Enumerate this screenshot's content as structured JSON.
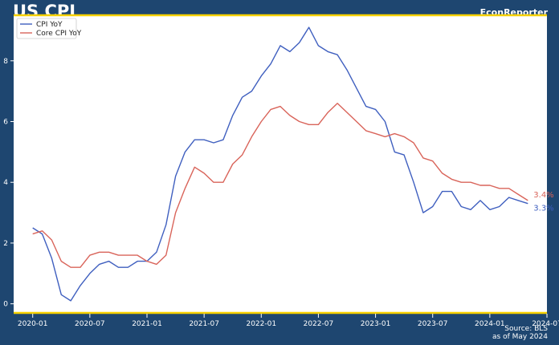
{
  "header": {
    "title": "US CPI",
    "brand": "EconReporter",
    "source_line1": "Source: BLS",
    "source_line2": "as of May 2024"
  },
  "colors": {
    "background": "#1e4670",
    "plot_background": "#ffffff",
    "accent": "#f5d000",
    "cpi": "#3f5fbf",
    "core": "#d9645a"
  },
  "chart_data": {
    "type": "line",
    "title": "US CPI",
    "xlabel": "",
    "ylabel": "",
    "xlim": [
      "2019-11",
      "2024-07"
    ],
    "ylim": [
      -0.3,
      9.5
    ],
    "yticks": [
      0,
      2,
      4,
      6,
      8
    ],
    "xticks": [
      "2020-01",
      "2020-07",
      "2021-01",
      "2021-07",
      "2022-01",
      "2022-07",
      "2023-01",
      "2023-07",
      "2024-01",
      "2024-07"
    ],
    "grid": false,
    "legend_position": "top-left",
    "x": [
      "2020-01",
      "2020-02",
      "2020-03",
      "2020-04",
      "2020-05",
      "2020-06",
      "2020-07",
      "2020-08",
      "2020-09",
      "2020-10",
      "2020-11",
      "2020-12",
      "2021-01",
      "2021-02",
      "2021-03",
      "2021-04",
      "2021-05",
      "2021-06",
      "2021-07",
      "2021-08",
      "2021-09",
      "2021-10",
      "2021-11",
      "2021-12",
      "2022-01",
      "2022-02",
      "2022-03",
      "2022-04",
      "2022-05",
      "2022-06",
      "2022-07",
      "2022-08",
      "2022-09",
      "2022-10",
      "2022-11",
      "2022-12",
      "2023-01",
      "2023-02",
      "2023-03",
      "2023-04",
      "2023-05",
      "2023-06",
      "2023-07",
      "2023-08",
      "2023-09",
      "2023-10",
      "2023-11",
      "2023-12",
      "2024-01",
      "2024-02",
      "2024-03",
      "2024-04",
      "2024-05"
    ],
    "series": [
      {
        "name": "CPI YoY",
        "color": "#3f5fbf",
        "end_label": "3.3%",
        "values": [
          2.5,
          2.3,
          1.5,
          0.3,
          0.1,
          0.6,
          1.0,
          1.3,
          1.4,
          1.2,
          1.2,
          1.4,
          1.4,
          1.7,
          2.6,
          4.2,
          5.0,
          5.4,
          5.4,
          5.3,
          5.4,
          6.2,
          6.8,
          7.0,
          7.5,
          7.9,
          8.5,
          8.3,
          8.6,
          9.1,
          8.5,
          8.3,
          8.2,
          7.7,
          7.1,
          6.5,
          6.4,
          6.0,
          5.0,
          4.9,
          4.0,
          3.0,
          3.2,
          3.7,
          3.7,
          3.2,
          3.1,
          3.4,
          3.1,
          3.2,
          3.5,
          3.4,
          3.3
        ]
      },
      {
        "name": "Core CPI YoY",
        "color": "#d9645a",
        "end_label": "3.4%",
        "values": [
          2.3,
          2.4,
          2.1,
          1.4,
          1.2,
          1.2,
          1.6,
          1.7,
          1.7,
          1.6,
          1.6,
          1.6,
          1.4,
          1.3,
          1.6,
          3.0,
          3.8,
          4.5,
          4.3,
          4.0,
          4.0,
          4.6,
          4.9,
          5.5,
          6.0,
          6.4,
          6.5,
          6.2,
          6.0,
          5.9,
          5.9,
          6.3,
          6.6,
          6.3,
          6.0,
          5.7,
          5.6,
          5.5,
          5.6,
          5.5,
          5.3,
          4.8,
          4.7,
          4.3,
          4.1,
          4.0,
          4.0,
          3.9,
          3.9,
          3.8,
          3.8,
          3.6,
          3.4
        ]
      }
    ]
  }
}
